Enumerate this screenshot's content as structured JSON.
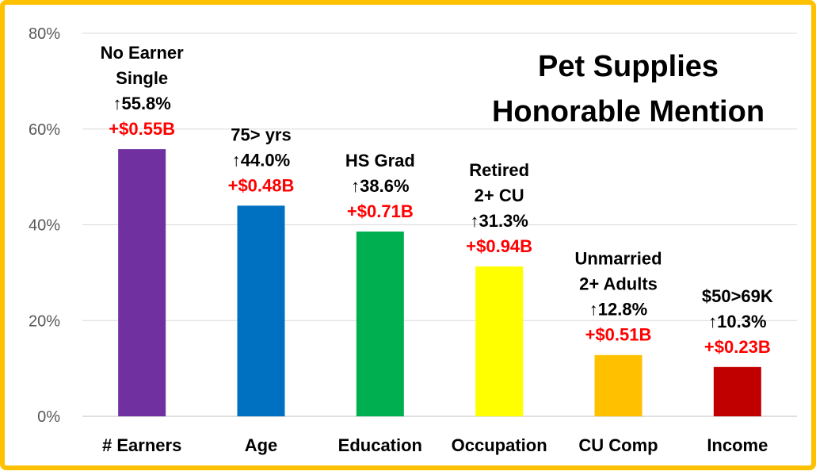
{
  "chart_data": {
    "type": "bar",
    "title": [
      "Pet Supplies",
      "Honorable Mention"
    ],
    "categories": [
      "# Earners",
      "Age",
      "Education",
      "Occupation",
      "CU Comp",
      "Income"
    ],
    "values": [
      55.8,
      44.0,
      38.6,
      31.3,
      12.8,
      10.3
    ],
    "ylim": [
      0,
      80
    ],
    "yticks": [
      0,
      20,
      40,
      60,
      80
    ],
    "ytick_labels": [
      "0%",
      "20%",
      "40%",
      "60%",
      "80%"
    ],
    "grid": true,
    "colors": [
      "#7030a0",
      "#0070c0",
      "#00b050",
      "#ffff00",
      "#ffc000",
      "#c00000"
    ],
    "labels": [
      [
        "No Earner",
        "Single",
        "↑55.8%",
        "+$0.55B"
      ],
      [
        "75> yrs",
        "↑44.0%",
        "+$0.48B"
      ],
      [
        "HS Grad",
        "↑38.6%",
        "+$0.71B"
      ],
      [
        "Retired",
        "2+ CU",
        "↑31.3%",
        "+$0.94B"
      ],
      [
        "Unmarried",
        "2+ Adults",
        "↑12.8%",
        "+$0.51B"
      ],
      [
        "$50>69K",
        "↑10.3%",
        "+$0.23B"
      ]
    ]
  },
  "colors": {
    "frame": "#ffc000",
    "gridline": "#d9d9d9",
    "highlight_text": "#ff0000"
  }
}
